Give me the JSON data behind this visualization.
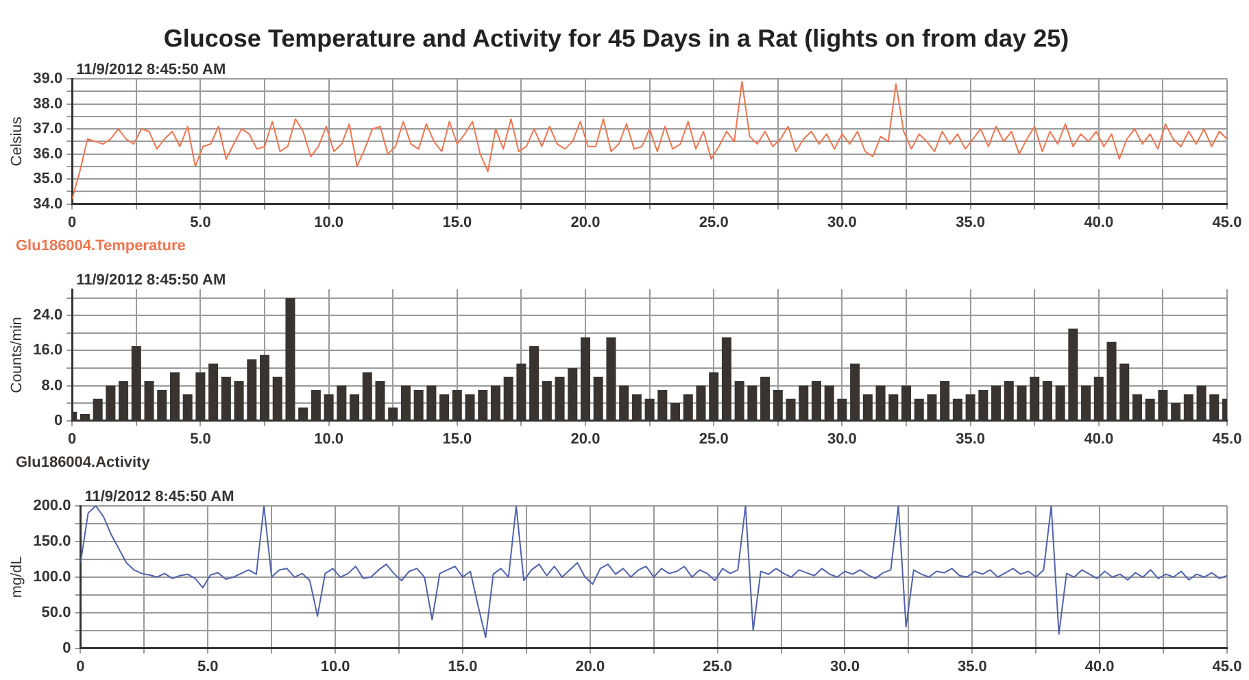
{
  "chart_data": [
    {
      "type": "line",
      "title": "Glucose Temperature and Activity for 45 Days in a Rat (lights on from day 25)",
      "ylabel": "Celsius",
      "annotations": [
        "11/9/2012 8:45:50 AM"
      ],
      "grid": true,
      "legend": "bottom left",
      "marker": "none",
      "line_style": "solid",
      "xlim": [
        0,
        45
      ],
      "xticks": [
        {
          "value": 0,
          "label": "0"
        },
        {
          "value": 2.5,
          "label": null
        },
        {
          "value": 5,
          "label": "5.0"
        },
        {
          "value": 7.5,
          "label": null
        },
        {
          "value": 10,
          "label": "10.0"
        },
        {
          "value": 12.5,
          "label": null
        },
        {
          "value": 15,
          "label": "15.0"
        },
        {
          "value": 17.5,
          "label": null
        },
        {
          "value": 20,
          "label": "20.0"
        },
        {
          "value": 22.5,
          "label": null
        },
        {
          "value": 25,
          "label": "25.0"
        },
        {
          "value": 27.5,
          "label": null
        },
        {
          "value": 30,
          "label": "30.0"
        },
        {
          "value": 32.5,
          "label": null
        },
        {
          "value": 35,
          "label": "35.0"
        },
        {
          "value": 37.5,
          "label": null
        },
        {
          "value": 40,
          "label": "40.0"
        },
        {
          "value": 42.5,
          "label": null
        },
        {
          "value": 45,
          "label": "45.0"
        }
      ],
      "ylim": [
        34,
        39
      ],
      "yticks": [
        {
          "value": 34,
          "label": "34.0"
        },
        {
          "value": 34.5,
          "label": null
        },
        {
          "value": 35,
          "label": "35.0"
        },
        {
          "value": 35.5,
          "label": null
        },
        {
          "value": 36,
          "label": "36.0"
        },
        {
          "value": 36.5,
          "label": null
        },
        {
          "value": 37,
          "label": "37.0"
        },
        {
          "value": 37.5,
          "label": null
        },
        {
          "value": 38,
          "label": "38.0"
        },
        {
          "value": 38.5,
          "label": null
        },
        {
          "value": 39,
          "label": "39.0"
        }
      ],
      "x": [
        0,
        0.3,
        0.6,
        0.9,
        1.2,
        1.5,
        1.8,
        2.1,
        2.4,
        2.7,
        3,
        3.3,
        3.6,
        3.9,
        4.2,
        4.5,
        4.8,
        5.1,
        5.4,
        5.7,
        6,
        6.3,
        6.6,
        6.9,
        7.2,
        7.5,
        7.8,
        8.1,
        8.4,
        8.7,
        9,
        9.3,
        9.6,
        9.9,
        10.2,
        10.5,
        10.8,
        11.1,
        11.4,
        11.7,
        12,
        12.3,
        12.6,
        12.9,
        13.2,
        13.5,
        13.8,
        14.1,
        14.4,
        14.7,
        15,
        15.3,
        15.6,
        15.9,
        16.2,
        16.5,
        16.8,
        17.1,
        17.4,
        17.7,
        18,
        18.3,
        18.6,
        18.9,
        19.2,
        19.5,
        19.8,
        20.1,
        20.4,
        20.7,
        21,
        21.3,
        21.6,
        21.9,
        22.2,
        22.5,
        22.8,
        23.1,
        23.4,
        23.7,
        24,
        24.3,
        24.6,
        24.9,
        25.2,
        25.5,
        25.8,
        26.1,
        26.4,
        26.7,
        27,
        27.3,
        27.6,
        27.9,
        28.2,
        28.5,
        28.8,
        29.1,
        29.4,
        29.7,
        30,
        30.3,
        30.6,
        30.9,
        31.2,
        31.5,
        31.8,
        32.1,
        32.4,
        32.7,
        33,
        33.3,
        33.6,
        33.9,
        34.2,
        34.5,
        34.8,
        35.1,
        35.4,
        35.7,
        36,
        36.3,
        36.6,
        36.9,
        37.2,
        37.5,
        37.8,
        38.1,
        38.4,
        38.7,
        39,
        39.3,
        39.6,
        39.9,
        40.2,
        40.5,
        40.8,
        41.1,
        41.4,
        41.7,
        42,
        42.3,
        42.6,
        42.9,
        43.2,
        43.5,
        43.8,
        44.1,
        44.4,
        44.7,
        45
      ],
      "series": [
        {
          "name": "Glu186004.Temperature",
          "color": "#ef7550",
          "values": [
            34.2,
            35.3,
            36.6,
            36.5,
            36.4,
            36.6,
            37.0,
            36.6,
            36.4,
            37.0,
            36.9,
            36.2,
            36.6,
            36.9,
            36.3,
            37.1,
            35.5,
            36.3,
            36.4,
            37.1,
            35.8,
            36.4,
            37.0,
            36.8,
            36.2,
            36.3,
            37.3,
            36.1,
            36.3,
            37.4,
            36.9,
            35.9,
            36.3,
            37.1,
            36.1,
            36.4,
            37.2,
            35.5,
            36.2,
            37.0,
            37.1,
            36.0,
            36.3,
            37.3,
            36.4,
            36.2,
            37.2,
            36.5,
            36.1,
            37.3,
            36.4,
            36.8,
            37.3,
            36.0,
            35.3,
            37.0,
            36.2,
            37.4,
            36.1,
            36.3,
            37.0,
            36.3,
            37.1,
            36.4,
            36.2,
            36.5,
            37.3,
            36.3,
            36.3,
            37.4,
            36.1,
            36.4,
            37.2,
            36.2,
            36.3,
            37.0,
            36.1,
            37.1,
            36.2,
            36.4,
            37.3,
            36.2,
            36.9,
            35.8,
            36.3,
            36.9,
            36.5,
            38.9,
            36.7,
            36.4,
            36.9,
            36.3,
            36.6,
            37.1,
            36.1,
            36.6,
            36.9,
            36.4,
            36.8,
            36.2,
            36.8,
            36.4,
            36.9,
            36.1,
            35.9,
            36.7,
            36.5,
            38.8,
            36.9,
            36.2,
            36.8,
            36.5,
            36.1,
            36.9,
            36.4,
            36.8,
            36.2,
            36.6,
            37.0,
            36.3,
            37.1,
            36.5,
            36.9,
            36.0,
            36.6,
            37.1,
            36.1,
            36.9,
            36.4,
            37.2,
            36.3,
            36.8,
            36.5,
            36.9,
            36.3,
            36.8,
            35.8,
            36.6,
            37.0,
            36.4,
            36.8,
            36.2,
            37.2,
            36.6,
            36.3,
            36.9,
            36.4,
            37.0,
            36.3,
            36.9,
            36.6
          ]
        }
      ]
    },
    {
      "type": "bar",
      "ylabel": "Counts/min",
      "annotations": [
        "11/9/2012 8:45:50 AM"
      ],
      "grid": true,
      "legend": "bottom left",
      "xlim": [
        0,
        45
      ],
      "xticks": [
        {
          "value": 0,
          "label": "0"
        },
        {
          "value": 2.5,
          "label": null
        },
        {
          "value": 5,
          "label": "5.0"
        },
        {
          "value": 7.5,
          "label": null
        },
        {
          "value": 10,
          "label": "10.0"
        },
        {
          "value": 12.5,
          "label": null
        },
        {
          "value": 15,
          "label": "15.0"
        },
        {
          "value": 17.5,
          "label": null
        },
        {
          "value": 20,
          "label": "20.0"
        },
        {
          "value": 22.5,
          "label": null
        },
        {
          "value": 25,
          "label": "25.0"
        },
        {
          "value": 27.5,
          "label": null
        },
        {
          "value": 30,
          "label": "30.0"
        },
        {
          "value": 32.5,
          "label": null
        },
        {
          "value": 35,
          "label": "35.0"
        },
        {
          "value": 37.5,
          "label": null
        },
        {
          "value": 40,
          "label": "40.0"
        },
        {
          "value": 42.5,
          "label": null
        },
        {
          "value": 45,
          "label": "45.0"
        }
      ],
      "ylim": [
        0,
        30
      ],
      "yticks": [
        0,
        {
          "value": 4,
          "label": null
        },
        {
          "value": 8,
          "label": "8.0"
        },
        {
          "value": 12,
          "label": null
        },
        {
          "value": 16,
          "label": "16.0"
        },
        {
          "value": 20,
          "label": null
        },
        {
          "value": 24,
          "label": "24.0"
        },
        {
          "value": 28,
          "label": null
        }
      ],
      "x": [
        0,
        0.5,
        1,
        1.5,
        2,
        2.5,
        3,
        3.5,
        4,
        4.5,
        5,
        5.5,
        6,
        6.5,
        7,
        7.5,
        8,
        8.5,
        9,
        9.5,
        10,
        10.5,
        11,
        11.5,
        12,
        12.5,
        13,
        13.5,
        14,
        14.5,
        15,
        15.5,
        16,
        16.5,
        17,
        17.5,
        18,
        18.5,
        19,
        19.5,
        20,
        20.5,
        21,
        21.5,
        22,
        22.5,
        23,
        23.5,
        24,
        24.5,
        25,
        25.5,
        26,
        26.5,
        27,
        27.5,
        28,
        28.5,
        29,
        29.5,
        30,
        30.5,
        31,
        31.5,
        32,
        32.5,
        33,
        33.5,
        34,
        34.5,
        35,
        35.5,
        36,
        36.5,
        37,
        37.5,
        38,
        38.5,
        39,
        39.5,
        40,
        40.5,
        41,
        41.5,
        42,
        42.5,
        43,
        43.5,
        44,
        44.5,
        45
      ],
      "series": [
        {
          "name": "Glu186004.Activity",
          "color": "#3a3430",
          "values": [
            2,
            1.5,
            5,
            8,
            9,
            17,
            9,
            7,
            11,
            6,
            11,
            13,
            10,
            9,
            14,
            15,
            10,
            28,
            3,
            7,
            6,
            8,
            6,
            11,
            9,
            3,
            8,
            7,
            8,
            6,
            7,
            6,
            7,
            8,
            10,
            13,
            17,
            9,
            10,
            12,
            19,
            10,
            19,
            8,
            6,
            5,
            7,
            4,
            6,
            8,
            11,
            19,
            9,
            8,
            10,
            7,
            5,
            8,
            9,
            8,
            5,
            13,
            6,
            8,
            6,
            8,
            5,
            6,
            9,
            5,
            6,
            7,
            8,
            9,
            8,
            10,
            9,
            8,
            21,
            8,
            10,
            18,
            13,
            6,
            5,
            7,
            4,
            6,
            8,
            6,
            5
          ]
        }
      ]
    },
    {
      "type": "line",
      "ylabel": "mg/dL",
      "annotations": [
        "11/9/2012 8:45:50 AM"
      ],
      "grid": true,
      "marker": "none",
      "line_style": "solid",
      "xlim": [
        0,
        45
      ],
      "xticks": [
        {
          "value": 0,
          "label": "0"
        },
        {
          "value": 2.5,
          "label": null
        },
        {
          "value": 5,
          "label": "5.0"
        },
        {
          "value": 7.5,
          "label": null
        },
        {
          "value": 10,
          "label": "10.0"
        },
        {
          "value": 12.5,
          "label": null
        },
        {
          "value": 15,
          "label": "15.0"
        },
        {
          "value": 17.5,
          "label": null
        },
        {
          "value": 20,
          "label": "20.0"
        },
        {
          "value": 22.5,
          "label": null
        },
        {
          "value": 25,
          "label": "25.0"
        },
        {
          "value": 27.5,
          "label": null
        },
        {
          "value": 30,
          "label": "30.0"
        },
        {
          "value": 32.5,
          "label": null
        },
        {
          "value": 35,
          "label": "35.0"
        },
        {
          "value": 37.5,
          "label": null
        },
        {
          "value": 40,
          "label": "40.0"
        },
        {
          "value": 42.5,
          "label": null
        },
        {
          "value": 45,
          "label": "45.0"
        }
      ],
      "ylim": [
        0,
        200
      ],
      "yticks": [
        0,
        {
          "value": 25,
          "label": null
        },
        {
          "value": 50,
          "label": "50.0"
        },
        {
          "value": 75,
          "label": null
        },
        {
          "value": 100,
          "label": "100.0"
        },
        {
          "value": 125,
          "label": null
        },
        {
          "value": 150,
          "label": "150.0"
        },
        {
          "value": 175,
          "label": null
        },
        {
          "value": 200,
          "label": "200.0"
        }
      ],
      "x": [
        0,
        0.3,
        0.6,
        0.9,
        1.2,
        1.5,
        1.8,
        2.1,
        2.4,
        2.7,
        3,
        3.3,
        3.6,
        3.9,
        4.2,
        4.5,
        4.8,
        5.1,
        5.4,
        5.7,
        6,
        6.3,
        6.6,
        6.9,
        7.2,
        7.5,
        7.8,
        8.1,
        8.4,
        8.7,
        9,
        9.3,
        9.6,
        9.9,
        10.2,
        10.5,
        10.8,
        11.1,
        11.4,
        11.7,
        12,
        12.3,
        12.6,
        12.9,
        13.2,
        13.5,
        13.8,
        14.1,
        14.4,
        14.7,
        15,
        15.3,
        15.6,
        15.9,
        16.2,
        16.5,
        16.8,
        17.1,
        17.4,
        17.7,
        18,
        18.3,
        18.6,
        18.9,
        19.2,
        19.5,
        19.8,
        20.1,
        20.4,
        20.7,
        21,
        21.3,
        21.6,
        21.9,
        22.2,
        22.5,
        22.8,
        23.1,
        23.4,
        23.7,
        24,
        24.3,
        24.6,
        24.9,
        25.2,
        25.5,
        25.8,
        26.1,
        26.4,
        26.7,
        27,
        27.3,
        27.6,
        27.9,
        28.2,
        28.5,
        28.8,
        29.1,
        29.4,
        29.7,
        30,
        30.3,
        30.6,
        30.9,
        31.2,
        31.5,
        31.8,
        32.1,
        32.4,
        32.7,
        33,
        33.3,
        33.6,
        33.9,
        34.2,
        34.5,
        34.8,
        35.1,
        35.4,
        35.7,
        36,
        36.3,
        36.6,
        36.9,
        37.2,
        37.5,
        37.8,
        38.1,
        38.4,
        38.7,
        39,
        39.3,
        39.6,
        39.9,
        40.2,
        40.5,
        40.8,
        41.1,
        41.4,
        41.7,
        42,
        42.3,
        42.6,
        42.9,
        43.2,
        43.5,
        43.8,
        44.1,
        44.4,
        44.7,
        45
      ],
      "series": [
        {
          "color": "#5062ad",
          "values": [
            120,
            190,
            200,
            185,
            160,
            140,
            120,
            110,
            105,
            103,
            100,
            105,
            98,
            102,
            104,
            98,
            85,
            103,
            106,
            97,
            100,
            105,
            110,
            104,
            200,
            100,
            110,
            112,
            100,
            105,
            95,
            45,
            105,
            112,
            100,
            105,
            115,
            98,
            100,
            110,
            118,
            105,
            95,
            108,
            112,
            100,
            40,
            105,
            110,
            115,
            100,
            108,
            60,
            15,
            104,
            112,
            100,
            200,
            95,
            110,
            118,
            102,
            115,
            100,
            110,
            120,
            100,
            90,
            112,
            118,
            104,
            112,
            100,
            110,
            115,
            100,
            112,
            105,
            108,
            115,
            100,
            110,
            105,
            95,
            112,
            105,
            110,
            200,
            25,
            108,
            104,
            112,
            105,
            100,
            110,
            106,
            102,
            112,
            104,
            100,
            108,
            104,
            110,
            103,
            98,
            106,
            110,
            200,
            30,
            110,
            104,
            100,
            108,
            106,
            112,
            102,
            100,
            108,
            104,
            110,
            100,
            106,
            112,
            104,
            108,
            100,
            110,
            200,
            20,
            105,
            100,
            110,
            104,
            98,
            108,
            100,
            104,
            96,
            106,
            100,
            110,
            98,
            104,
            100,
            108,
            96,
            104,
            100,
            106,
            98,
            102
          ]
        }
      ]
    }
  ]
}
